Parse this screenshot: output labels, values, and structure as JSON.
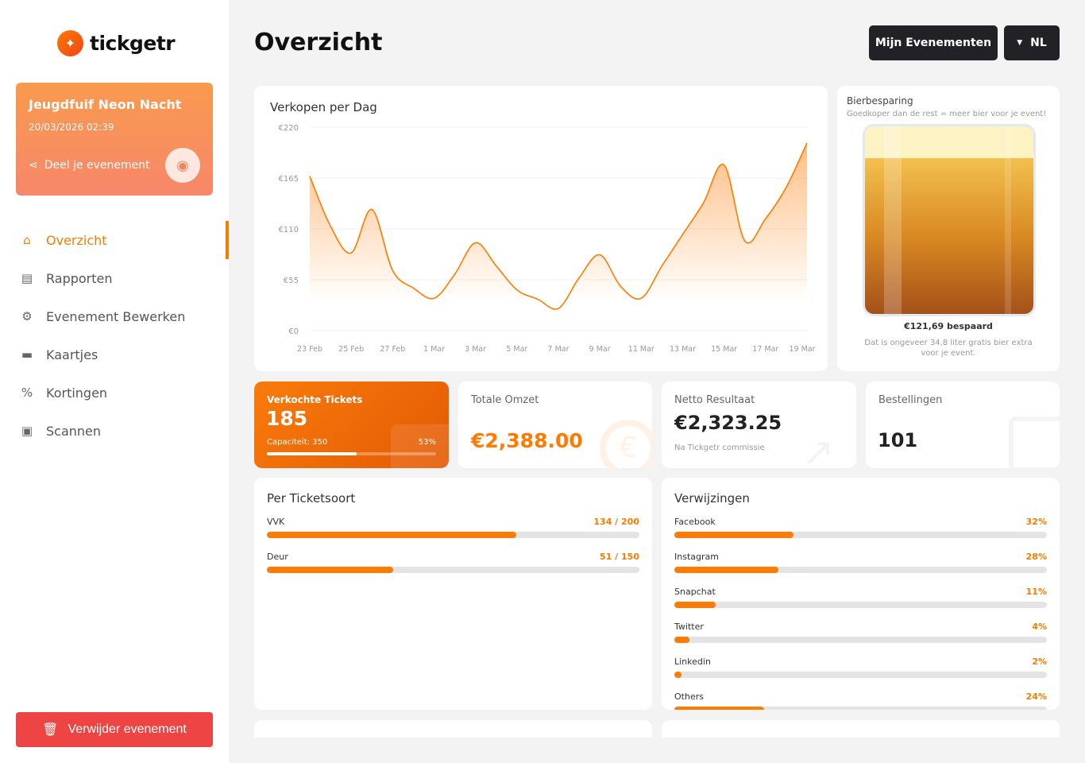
{
  "brand": {
    "name": "tickgetr",
    "accent": "#ff7a00"
  },
  "event": {
    "title": "Jeugdfuif Neon Nacht",
    "date": "20/03/2026 02:39",
    "share_label": "Deel je evenement"
  },
  "nav": [
    {
      "label": "Overzicht",
      "icon": "home-icon",
      "active": true
    },
    {
      "label": "Rapporten",
      "icon": "chart-icon"
    },
    {
      "label": "Evenement Bewerken",
      "icon": "gear-icon"
    },
    {
      "label": "Kaartjes",
      "icon": "ticket-icon"
    },
    {
      "label": "Kortingen",
      "icon": "discount-icon"
    },
    {
      "label": "Scannen",
      "icon": "scan-icon"
    }
  ],
  "delete_label": "Verwijder evenement",
  "header": {
    "title": "Overzicht",
    "events_button": "Mijn Evenementen",
    "language": "NL"
  },
  "chart_data": {
    "type": "area",
    "title": "Verkopen per Dag",
    "x": [
      "23 Feb",
      "24 Feb",
      "25 Feb",
      "26 Feb",
      "27 Feb",
      "28 Feb",
      "1 Mar",
      "2 Mar",
      "3 Mar",
      "4 Mar",
      "5 Mar",
      "6 Mar",
      "7 Mar",
      "8 Mar",
      "9 Mar",
      "10 Mar",
      "11 Mar",
      "12 Mar",
      "13 Mar",
      "14 Mar",
      "15 Mar",
      "16 Mar",
      "17 Mar",
      "18 Mar",
      "19 Mar"
    ],
    "values": [
      167,
      113,
      84,
      131,
      65,
      46,
      35,
      61,
      95,
      70,
      44,
      34,
      24,
      57,
      82,
      48,
      35,
      70,
      104,
      138,
      179,
      97,
      121,
      155,
      203
    ],
    "xticks": [
      "23 Feb",
      "25 Feb",
      "27 Feb",
      "1 Mar",
      "3 Mar",
      "5 Mar",
      "7 Mar",
      "9 Mar",
      "11 Mar",
      "13 Mar",
      "15 Mar",
      "17 Mar",
      "19 Mar"
    ],
    "yticks": [
      "€0",
      "€55",
      "€110",
      "€165",
      "€220"
    ],
    "ylim": [
      0,
      220
    ],
    "grid": true,
    "color": "#ff7a00"
  },
  "beer": {
    "title": "Bierbesparing",
    "subtitle": "Goedkoper dan de rest = meer bier voor je event!",
    "saved": "€121,69 bespaard",
    "note": "Dat is ongeveer 34,8 liter gratis bier extra voor je event."
  },
  "stats": {
    "tickets": {
      "label": "Verkochte Tickets",
      "value": "185",
      "capacity": "Capaciteit: 350",
      "percent_label": "53%",
      "percent": 53
    },
    "revenue": {
      "label": "Totale Omzet",
      "value": "€2,388.00"
    },
    "net": {
      "label": "Netto Resultaat",
      "value": "€2,323.25",
      "note": "Na Tickgetr commissie"
    },
    "orders": {
      "label": "Bestellingen",
      "value": "101"
    }
  },
  "ticket_types": {
    "title": "Per Ticketsoort",
    "items": [
      {
        "name": "VVK",
        "value": "134 / 200",
        "percent": 67
      },
      {
        "name": "Deur",
        "value": "51 / 150",
        "percent": 34
      }
    ]
  },
  "referrals": {
    "title": "Verwijzingen",
    "items": [
      {
        "name": "Facebook",
        "value": "32%",
        "percent": 32
      },
      {
        "name": "Instagram",
        "value": "28%",
        "percent": 28
      },
      {
        "name": "Snapchat",
        "value": "11%",
        "percent": 11
      },
      {
        "name": "Twitter",
        "value": "4%",
        "percent": 4
      },
      {
        "name": "Linkedin",
        "value": "2%",
        "percent": 2
      },
      {
        "name": "Others",
        "value": "24%",
        "percent": 24
      }
    ]
  }
}
